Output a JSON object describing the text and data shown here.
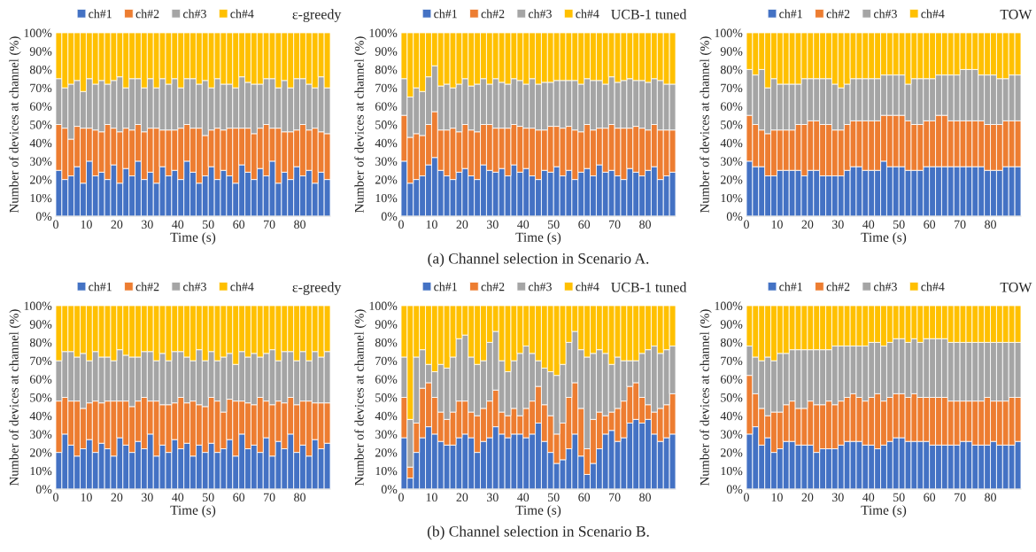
{
  "chart_data": [
    {
      "type": "bar",
      "stacked": true,
      "title": "ε-greedy",
      "xlabel": "Time (s)",
      "ylabel": "Number of devices at channel (%)",
      "legend": "top",
      "xlim": [
        0,
        90
      ],
      "xticks": [
        0,
        10,
        20,
        30,
        40,
        50,
        60,
        70,
        80
      ],
      "ylim": [
        0,
        100
      ],
      "yticks": [
        {
          "value": 0,
          "label": "0%"
        },
        {
          "value": 10,
          "label": "10%"
        },
        {
          "value": 20,
          "label": "20%"
        },
        {
          "value": 30,
          "label": "30%"
        },
        {
          "value": 40,
          "label": "40%"
        },
        {
          "value": 50,
          "label": "50%"
        },
        {
          "value": 60,
          "label": "60%"
        },
        {
          "value": 70,
          "label": "70%"
        },
        {
          "value": 80,
          "label": "80%"
        },
        {
          "value": 90,
          "label": "90%"
        },
        {
          "value": 100,
          "label": "100%"
        }
      ],
      "x": [
        1,
        3,
        5,
        7,
        9,
        11,
        13,
        15,
        17,
        19,
        21,
        23,
        25,
        27,
        29,
        31,
        33,
        35,
        37,
        39,
        41,
        43,
        45,
        47,
        49,
        51,
        53,
        55,
        57,
        59,
        61,
        63,
        65,
        67,
        69,
        71,
        73,
        75,
        77,
        79,
        81,
        83,
        85,
        87,
        89
      ],
      "series": [
        {
          "name": "ch#1",
          "color": "#4472c4",
          "values": [
            25,
            20,
            22,
            27,
            18,
            30,
            22,
            24,
            20,
            28,
            18,
            26,
            22,
            30,
            20,
            24,
            18,
            27,
            22,
            25,
            20,
            30,
            24,
            18,
            22,
            27,
            20,
            25,
            22,
            18,
            28,
            24,
            20,
            26,
            22,
            30,
            18,
            24,
            20,
            27,
            22,
            25,
            18,
            24,
            20
          ]
        },
        {
          "name": "ch#2",
          "color": "#ed7d31",
          "values": [
            25,
            28,
            20,
            22,
            30,
            18,
            25,
            22,
            30,
            20,
            28,
            22,
            25,
            20,
            26,
            24,
            30,
            20,
            25,
            22,
            28,
            20,
            24,
            30,
            22,
            20,
            28,
            22,
            26,
            30,
            20,
            24,
            25,
            22,
            28,
            18,
            30,
            22,
            26,
            20,
            28,
            22,
            30,
            22,
            25
          ]
        },
        {
          "name": "ch#3",
          "color": "#a5a5a5",
          "values": [
            25,
            22,
            30,
            25,
            20,
            27,
            25,
            28,
            22,
            26,
            30,
            22,
            28,
            25,
            24,
            27,
            22,
            28,
            25,
            28,
            22,
            25,
            27,
            24,
            30,
            23,
            27,
            25,
            24,
            22,
            28,
            25,
            27,
            24,
            25,
            27,
            22,
            28,
            24,
            28,
            25,
            25,
            22,
            30,
            25
          ]
        },
        {
          "name": "ch#4",
          "color": "#ffc000",
          "values": [
            25,
            30,
            28,
            26,
            32,
            25,
            28,
            26,
            28,
            26,
            24,
            30,
            25,
            25,
            30,
            25,
            30,
            25,
            28,
            25,
            30,
            25,
            25,
            28,
            26,
            30,
            25,
            28,
            28,
            30,
            24,
            27,
            28,
            28,
            25,
            25,
            30,
            26,
            30,
            25,
            25,
            28,
            30,
            24,
            30
          ]
        }
      ]
    },
    {
      "type": "bar",
      "stacked": true,
      "title": "UCB-1 tuned",
      "xlabel": "Time (s)",
      "ylabel": "Number of devices at channel (%)",
      "legend": "top",
      "xlim": [
        0,
        90
      ],
      "xticks": [
        0,
        10,
        20,
        30,
        40,
        50,
        60,
        70,
        80
      ],
      "ylim": [
        0,
        100
      ],
      "yticks": [
        {
          "value": 0,
          "label": "0%"
        },
        {
          "value": 10,
          "label": "10%"
        },
        {
          "value": 20,
          "label": "20%"
        },
        {
          "value": 30,
          "label": "30%"
        },
        {
          "value": 40,
          "label": "40%"
        },
        {
          "value": 50,
          "label": "50%"
        },
        {
          "value": 60,
          "label": "60%"
        },
        {
          "value": 70,
          "label": "70%"
        },
        {
          "value": 80,
          "label": "80%"
        },
        {
          "value": 90,
          "label": "90%"
        },
        {
          "value": 100,
          "label": "100%"
        }
      ],
      "annotations": [
        "(a) Channel selection in Scenario A."
      ],
      "x": [
        1,
        3,
        5,
        7,
        9,
        11,
        13,
        15,
        17,
        19,
        21,
        23,
        25,
        27,
        29,
        31,
        33,
        35,
        37,
        39,
        41,
        43,
        45,
        47,
        49,
        51,
        53,
        55,
        57,
        59,
        61,
        63,
        65,
        67,
        69,
        71,
        73,
        75,
        77,
        79,
        81,
        83,
        85,
        87,
        89
      ],
      "series": [
        {
          "name": "ch#1",
          "color": "#4472c4",
          "values": [
            30,
            18,
            20,
            22,
            28,
            32,
            25,
            22,
            20,
            24,
            26,
            22,
            20,
            28,
            25,
            24,
            26,
            22,
            28,
            24,
            26,
            22,
            20,
            25,
            24,
            27,
            22,
            25,
            20,
            24,
            26,
            22,
            28,
            24,
            25,
            22,
            20,
            26,
            24,
            22,
            25,
            27,
            20,
            22,
            24
          ]
        },
        {
          "name": "ch#2",
          "color": "#ed7d31",
          "values": [
            25,
            25,
            25,
            22,
            22,
            25,
            22,
            25,
            28,
            22,
            24,
            25,
            26,
            22,
            25,
            24,
            22,
            26,
            22,
            25,
            22,
            26,
            27,
            22,
            25,
            22,
            26,
            24,
            27,
            22,
            24,
            25,
            20,
            24,
            25,
            26,
            28,
            22,
            25,
            26,
            22,
            23,
            27,
            25,
            23
          ]
        },
        {
          "name": "ch#3",
          "color": "#a5a5a5",
          "values": [
            20,
            22,
            25,
            24,
            26,
            25,
            24,
            25,
            22,
            26,
            25,
            24,
            26,
            25,
            22,
            27,
            25,
            24,
            25,
            25,
            24,
            27,
            25,
            26,
            24,
            25,
            26,
            25,
            27,
            26,
            25,
            27,
            26,
            24,
            26,
            25,
            26,
            27,
            25,
            26,
            26,
            25,
            27,
            25,
            25
          ]
        },
        {
          "name": "ch#4",
          "color": "#ffc000",
          "values": [
            25,
            35,
            30,
            32,
            24,
            18,
            29,
            28,
            30,
            28,
            25,
            29,
            28,
            25,
            28,
            25,
            27,
            28,
            25,
            26,
            28,
            25,
            28,
            27,
            27,
            26,
            26,
            26,
            26,
            28,
            25,
            26,
            26,
            28,
            24,
            27,
            26,
            25,
            26,
            26,
            27,
            25,
            26,
            28,
            28
          ]
        }
      ]
    },
    {
      "type": "bar",
      "stacked": true,
      "title": "TOW",
      "xlabel": "Time (s)",
      "ylabel": "Number of devices at channel (%)",
      "legend": "top",
      "xlim": [
        0,
        90
      ],
      "xticks": [
        0,
        10,
        20,
        30,
        40,
        50,
        60,
        70,
        80
      ],
      "ylim": [
        0,
        100
      ],
      "yticks": [
        {
          "value": 0,
          "label": "0%"
        },
        {
          "value": 10,
          "label": "10%"
        },
        {
          "value": 20,
          "label": "20%"
        },
        {
          "value": 30,
          "label": "30%"
        },
        {
          "value": 40,
          "label": "40%"
        },
        {
          "value": 50,
          "label": "50%"
        },
        {
          "value": 60,
          "label": "60%"
        },
        {
          "value": 70,
          "label": "70%"
        },
        {
          "value": 80,
          "label": "80%"
        },
        {
          "value": 90,
          "label": "90%"
        },
        {
          "value": 100,
          "label": "100%"
        }
      ],
      "x": [
        1,
        3,
        5,
        7,
        9,
        11,
        13,
        15,
        17,
        19,
        21,
        23,
        25,
        27,
        29,
        31,
        33,
        35,
        37,
        39,
        41,
        43,
        45,
        47,
        49,
        51,
        53,
        55,
        57,
        59,
        61,
        63,
        65,
        67,
        69,
        71,
        73,
        75,
        77,
        79,
        81,
        83,
        85,
        87,
        89
      ],
      "series": [
        {
          "name": "ch#1",
          "color": "#4472c4",
          "values": [
            30,
            27,
            27,
            22,
            22,
            25,
            25,
            25,
            25,
            22,
            25,
            25,
            22,
            22,
            22,
            22,
            25,
            27,
            27,
            25,
            25,
            25,
            30,
            27,
            27,
            27,
            25,
            25,
            25,
            27,
            27,
            27,
            27,
            27,
            27,
            27,
            27,
            27,
            27,
            25,
            25,
            25,
            27,
            27,
            27
          ]
        },
        {
          "name": "ch#2",
          "color": "#ed7d31",
          "values": [
            25,
            23,
            20,
            23,
            25,
            22,
            22,
            22,
            25,
            28,
            27,
            27,
            28,
            28,
            25,
            25,
            25,
            25,
            25,
            27,
            27,
            27,
            25,
            28,
            28,
            28,
            27,
            25,
            25,
            25,
            25,
            28,
            28,
            25,
            25,
            25,
            25,
            25,
            25,
            25,
            25,
            25,
            25,
            25,
            25
          ]
        },
        {
          "name": "ch#3",
          "color": "#a5a5a5",
          "values": [
            25,
            27,
            33,
            25,
            28,
            25,
            25,
            25,
            22,
            25,
            23,
            23,
            25,
            25,
            25,
            23,
            22,
            23,
            23,
            23,
            23,
            23,
            22,
            22,
            22,
            22,
            20,
            25,
            25,
            23,
            23,
            22,
            22,
            25,
            25,
            28,
            28,
            28,
            25,
            27,
            27,
            25,
            23,
            25,
            25
          ]
        },
        {
          "name": "ch#4",
          "color": "#ffc000",
          "values": [
            20,
            23,
            20,
            30,
            25,
            28,
            28,
            28,
            28,
            25,
            25,
            25,
            25,
            25,
            28,
            30,
            28,
            25,
            25,
            25,
            25,
            25,
            23,
            23,
            23,
            23,
            28,
            25,
            25,
            25,
            25,
            23,
            23,
            23,
            23,
            20,
            20,
            20,
            23,
            23,
            23,
            25,
            25,
            23,
            23
          ]
        }
      ]
    },
    {
      "type": "bar",
      "stacked": true,
      "title": "ε-greedy",
      "xlabel": "Time (s)",
      "ylabel": "Number of devices at channel (%)",
      "legend": "top",
      "xlim": [
        0,
        90
      ],
      "xticks": [
        0,
        10,
        20,
        30,
        40,
        50,
        60,
        70,
        80
      ],
      "ylim": [
        0,
        100
      ],
      "yticks": [
        {
          "value": 0,
          "label": "0%"
        },
        {
          "value": 10,
          "label": "10%"
        },
        {
          "value": 20,
          "label": "20%"
        },
        {
          "value": 30,
          "label": "30%"
        },
        {
          "value": 40,
          "label": "40%"
        },
        {
          "value": 50,
          "label": "50%"
        },
        {
          "value": 60,
          "label": "60%"
        },
        {
          "value": 70,
          "label": "70%"
        },
        {
          "value": 80,
          "label": "80%"
        },
        {
          "value": 90,
          "label": "90%"
        },
        {
          "value": 100,
          "label": "100%"
        }
      ],
      "x": [
        1,
        3,
        5,
        7,
        9,
        11,
        13,
        15,
        17,
        19,
        21,
        23,
        25,
        27,
        29,
        31,
        33,
        35,
        37,
        39,
        41,
        43,
        45,
        47,
        49,
        51,
        53,
        55,
        57,
        59,
        61,
        63,
        65,
        67,
        69,
        71,
        73,
        75,
        77,
        79,
        81,
        83,
        85,
        87,
        89
      ],
      "series": [
        {
          "name": "ch#1",
          "color": "#4472c4",
          "values": [
            20,
            30,
            24,
            18,
            22,
            27,
            20,
            25,
            22,
            18,
            28,
            24,
            20,
            26,
            22,
            30,
            18,
            24,
            20,
            27,
            22,
            25,
            18,
            24,
            20,
            25,
            20,
            22,
            27,
            18,
            30,
            22,
            24,
            20,
            28,
            18,
            26,
            22,
            30,
            20,
            24,
            18,
            27,
            22,
            25
          ]
        },
        {
          "name": "ch#2",
          "color": "#ed7d31",
          "values": [
            28,
            20,
            24,
            30,
            22,
            20,
            28,
            22,
            26,
            30,
            20,
            24,
            25,
            22,
            28,
            18,
            30,
            22,
            26,
            20,
            28,
            22,
            30,
            22,
            25,
            25,
            28,
            20,
            22,
            30,
            18,
            25,
            22,
            30,
            20,
            28,
            22,
            25,
            20,
            26,
            24,
            30,
            20,
            25,
            22
          ]
        },
        {
          "name": "ch#3",
          "color": "#a5a5a5",
          "values": [
            22,
            25,
            27,
            24,
            30,
            23,
            27,
            25,
            24,
            22,
            28,
            25,
            27,
            24,
            25,
            27,
            22,
            28,
            24,
            28,
            25,
            25,
            22,
            30,
            25,
            25,
            22,
            30,
            25,
            20,
            27,
            25,
            28,
            22,
            26,
            30,
            22,
            28,
            25,
            24,
            27,
            22,
            28,
            25,
            28
          ]
        },
        {
          "name": "ch#4",
          "color": "#ffc000",
          "values": [
            30,
            25,
            25,
            28,
            26,
            30,
            25,
            28,
            28,
            30,
            24,
            27,
            28,
            28,
            25,
            25,
            30,
            26,
            30,
            25,
            25,
            28,
            30,
            24,
            30,
            25,
            30,
            28,
            26,
            32,
            25,
            28,
            26,
            28,
            26,
            24,
            30,
            25,
            25,
            30,
            25,
            30,
            25,
            28,
            25
          ]
        }
      ]
    },
    {
      "type": "bar",
      "stacked": true,
      "title": "UCB-1 tuned",
      "xlabel": "Time (s)",
      "ylabel": "Number of devices at channel (%)",
      "legend": "top",
      "xlim": [
        0,
        90
      ],
      "xticks": [
        0,
        10,
        20,
        30,
        40,
        50,
        60,
        70,
        80
      ],
      "ylim": [
        0,
        100
      ],
      "yticks": [
        {
          "value": 0,
          "label": "0%"
        },
        {
          "value": 10,
          "label": "10%"
        },
        {
          "value": 20,
          "label": "20%"
        },
        {
          "value": 30,
          "label": "30%"
        },
        {
          "value": 40,
          "label": "40%"
        },
        {
          "value": 50,
          "label": "50%"
        },
        {
          "value": 60,
          "label": "60%"
        },
        {
          "value": 70,
          "label": "70%"
        },
        {
          "value": 80,
          "label": "80%"
        },
        {
          "value": 90,
          "label": "90%"
        },
        {
          "value": 100,
          "label": "100%"
        }
      ],
      "annotations": [
        "(b) Channel selection in Scenario B."
      ],
      "x": [
        1,
        3,
        5,
        7,
        9,
        11,
        13,
        15,
        17,
        19,
        21,
        23,
        25,
        27,
        29,
        31,
        33,
        35,
        37,
        39,
        41,
        43,
        45,
        47,
        49,
        51,
        53,
        55,
        57,
        59,
        61,
        63,
        65,
        67,
        69,
        71,
        73,
        75,
        77,
        79,
        81,
        83,
        85,
        87,
        89
      ],
      "series": [
        {
          "name": "ch#1",
          "color": "#4472c4",
          "values": [
            28,
            6,
            20,
            28,
            34,
            30,
            26,
            24,
            24,
            28,
            30,
            28,
            20,
            26,
            28,
            34,
            30,
            28,
            30,
            30,
            28,
            30,
            36,
            26,
            20,
            14,
            16,
            22,
            30,
            18,
            8,
            14,
            22,
            30,
            32,
            26,
            28,
            36,
            38,
            36,
            38,
            30,
            26,
            28,
            30
          ]
        },
        {
          "name": "ch#2",
          "color": "#ed7d31",
          "values": [
            22,
            6,
            16,
            27,
            24,
            20,
            16,
            14,
            18,
            20,
            18,
            14,
            20,
            18,
            20,
            20,
            12,
            12,
            14,
            10,
            16,
            18,
            20,
            20,
            20,
            16,
            20,
            28,
            28,
            26,
            14,
            24,
            20,
            10,
            10,
            18,
            20,
            20,
            20,
            14,
            8,
            12,
            18,
            18,
            22
          ]
        },
        {
          "name": "ch#3",
          "color": "#a5a5a5",
          "values": [
            22,
            26,
            36,
            21,
            10,
            14,
            26,
            28,
            30,
            34,
            36,
            30,
            28,
            26,
            32,
            32,
            28,
            24,
            26,
            34,
            34,
            26,
            14,
            20,
            24,
            32,
            32,
            30,
            28,
            32,
            50,
            36,
            34,
            34,
            26,
            28,
            22,
            14,
            12,
            24,
            30,
            36,
            30,
            30,
            26
          ]
        },
        {
          "name": "ch#4",
          "color": "#ffc000",
          "values": [
            28,
            62,
            28,
            24,
            32,
            36,
            32,
            34,
            28,
            18,
            16,
            28,
            32,
            30,
            20,
            14,
            30,
            36,
            30,
            26,
            22,
            26,
            30,
            34,
            36,
            38,
            32,
            20,
            14,
            24,
            28,
            26,
            24,
            26,
            32,
            28,
            30,
            30,
            30,
            26,
            24,
            22,
            26,
            24,
            22
          ]
        }
      ]
    },
    {
      "type": "bar",
      "stacked": true,
      "title": "TOW",
      "xlabel": "Time (s)",
      "ylabel": "Number of devices at channel (%)",
      "legend": "top",
      "xlim": [
        0,
        90
      ],
      "xticks": [
        0,
        10,
        20,
        30,
        40,
        50,
        60,
        70,
        80
      ],
      "ylim": [
        0,
        100
      ],
      "yticks": [
        {
          "value": 0,
          "label": "0%"
        },
        {
          "value": 10,
          "label": "10%"
        },
        {
          "value": 20,
          "label": "20%"
        },
        {
          "value": 30,
          "label": "30%"
        },
        {
          "value": 40,
          "label": "40%"
        },
        {
          "value": 50,
          "label": "50%"
        },
        {
          "value": 60,
          "label": "60%"
        },
        {
          "value": 70,
          "label": "70%"
        },
        {
          "value": 80,
          "label": "80%"
        },
        {
          "value": 90,
          "label": "90%"
        },
        {
          "value": 100,
          "label": "100%"
        }
      ],
      "x": [
        1,
        3,
        5,
        7,
        9,
        11,
        13,
        15,
        17,
        19,
        21,
        23,
        25,
        27,
        29,
        31,
        33,
        35,
        37,
        39,
        41,
        43,
        45,
        47,
        49,
        51,
        53,
        55,
        57,
        59,
        61,
        63,
        65,
        67,
        69,
        71,
        73,
        75,
        77,
        79,
        81,
        83,
        85,
        87,
        89
      ],
      "series": [
        {
          "name": "ch#1",
          "color": "#4472c4",
          "values": [
            30,
            34,
            24,
            28,
            20,
            22,
            26,
            26,
            24,
            24,
            24,
            20,
            22,
            22,
            22,
            24,
            26,
            26,
            26,
            24,
            24,
            22,
            24,
            26,
            28,
            28,
            26,
            26,
            26,
            26,
            24,
            24,
            24,
            24,
            24,
            26,
            26,
            24,
            24,
            24,
            26,
            24,
            24,
            24,
            26
          ]
        },
        {
          "name": "ch#2",
          "color": "#ed7d31",
          "values": [
            32,
            18,
            20,
            12,
            22,
            20,
            20,
            22,
            20,
            20,
            24,
            26,
            24,
            26,
            24,
            24,
            24,
            26,
            24,
            24,
            26,
            30,
            24,
            24,
            24,
            24,
            24,
            26,
            24,
            24,
            26,
            26,
            26,
            24,
            24,
            22,
            22,
            24,
            24,
            26,
            22,
            24,
            24,
            26,
            24
          ]
        },
        {
          "name": "ch#3",
          "color": "#a5a5a5",
          "values": [
            16,
            20,
            26,
            32,
            28,
            32,
            28,
            28,
            32,
            32,
            28,
            30,
            30,
            28,
            32,
            30,
            28,
            26,
            28,
            30,
            30,
            28,
            30,
            30,
            30,
            30,
            30,
            30,
            30,
            32,
            32,
            32,
            32,
            32,
            32,
            32,
            32,
            32,
            32,
            30,
            32,
            32,
            32,
            30,
            30
          ]
        },
        {
          "name": "ch#4",
          "color": "#ffc000",
          "values": [
            22,
            28,
            30,
            28,
            30,
            26,
            26,
            24,
            24,
            24,
            24,
            24,
            24,
            24,
            22,
            22,
            22,
            22,
            22,
            22,
            20,
            20,
            22,
            20,
            18,
            18,
            20,
            18,
            20,
            18,
            18,
            18,
            18,
            20,
            20,
            20,
            20,
            20,
            20,
            20,
            20,
            20,
            20,
            20,
            20
          ]
        }
      ]
    }
  ]
}
